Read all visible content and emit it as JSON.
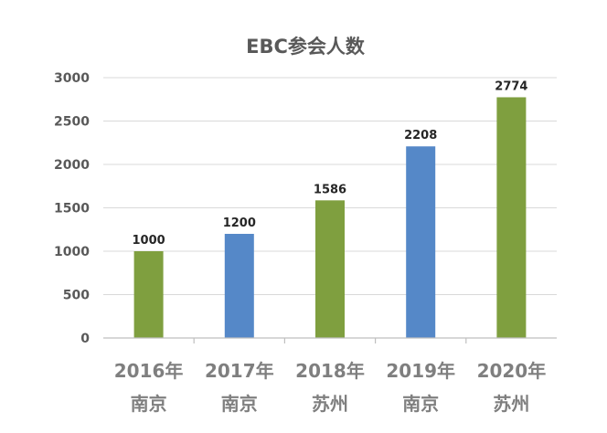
{
  "chart_data": {
    "type": "bar",
    "title": "EBC参会人数",
    "categories": [
      {
        "year": "2016年",
        "city": "南京"
      },
      {
        "year": "2017年",
        "city": "南京"
      },
      {
        "year": "2018年",
        "city": "苏州"
      },
      {
        "year": "2019年",
        "city": "南京"
      },
      {
        "year": "2020年",
        "city": "苏州"
      }
    ],
    "values": [
      1000,
      1200,
      1586,
      2208,
      2774
    ],
    "bar_colors": [
      "#7f9f3f",
      "#5588c8",
      "#7f9f3f",
      "#5588c8",
      "#7f9f3f"
    ],
    "ylim": [
      0,
      3000
    ],
    "yticks": [
      0,
      500,
      1000,
      1500,
      2000,
      2500,
      3000
    ],
    "grid": true,
    "xlabel": "",
    "ylabel": ""
  }
}
